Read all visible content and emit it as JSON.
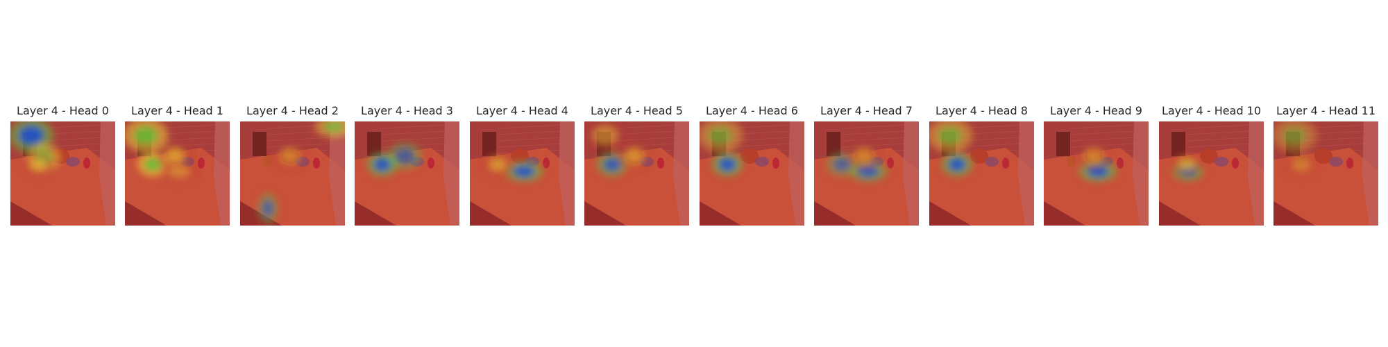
{
  "figure": {
    "panels": [
      {
        "title": "Layer 4 - Head 0",
        "hotspots": [
          {
            "spot": "left-top",
            "tone": "blue",
            "weight": 1.0
          },
          {
            "spot": "pot-left",
            "tone": "green",
            "weight": 0.8
          },
          {
            "spot": "mug",
            "tone": "yellow",
            "weight": 0.6
          }
        ]
      },
      {
        "title": "Layer 4 - Head 1",
        "hotspots": [
          {
            "spot": "left-top",
            "tone": "green",
            "weight": 0.9
          },
          {
            "spot": "mug",
            "tone": "green",
            "weight": 1.0
          },
          {
            "spot": "pot",
            "tone": "yellow",
            "weight": 0.7
          },
          {
            "spot": "counter-mid",
            "tone": "yellow",
            "weight": 0.5
          }
        ]
      },
      {
        "title": "Layer 4 - Head 2",
        "hotspots": [
          {
            "spot": "top-right",
            "tone": "green",
            "weight": 0.8
          },
          {
            "spot": "cabinet-low",
            "tone": "blue",
            "weight": 0.7
          },
          {
            "spot": "pot",
            "tone": "yellow",
            "weight": 0.5
          }
        ]
      },
      {
        "title": "Layer 4 - Head 3",
        "hotspots": [
          {
            "spot": "mug",
            "tone": "blue",
            "weight": 1.0
          },
          {
            "spot": "pot",
            "tone": "blue",
            "weight": 0.7
          }
        ]
      },
      {
        "title": "Layer 4 - Head 4",
        "hotspots": [
          {
            "spot": "counter-mid",
            "tone": "blue",
            "weight": 1.0
          },
          {
            "spot": "mug",
            "tone": "yellow",
            "weight": 0.6
          }
        ]
      },
      {
        "title": "Layer 4 - Head 5",
        "hotspots": [
          {
            "spot": "mug",
            "tone": "blue",
            "weight": 0.9
          },
          {
            "spot": "left-top",
            "tone": "yellow",
            "weight": 0.5
          },
          {
            "spot": "pot",
            "tone": "yellow",
            "weight": 0.6
          }
        ]
      },
      {
        "title": "Layer 4 - Head 6",
        "hotspots": [
          {
            "spot": "mug",
            "tone": "blue",
            "weight": 1.0
          },
          {
            "spot": "left-top",
            "tone": "green",
            "weight": 0.6
          }
        ]
      },
      {
        "title": "Layer 4 - Head 7",
        "hotspots": [
          {
            "spot": "counter-mid",
            "tone": "blue",
            "weight": 0.9
          },
          {
            "spot": "mug",
            "tone": "blue",
            "weight": 0.7
          },
          {
            "spot": "pot",
            "tone": "yellow",
            "weight": 0.5
          }
        ]
      },
      {
        "title": "Layer 4 - Head 8",
        "hotspots": [
          {
            "spot": "mug",
            "tone": "blue",
            "weight": 1.0
          },
          {
            "spot": "left-top",
            "tone": "green",
            "weight": 0.7
          }
        ]
      },
      {
        "title": "Layer 4 - Head 9",
        "hotspots": [
          {
            "spot": "counter-mid",
            "tone": "blue",
            "weight": 1.0
          },
          {
            "spot": "pot",
            "tone": "yellow",
            "weight": 0.5
          }
        ]
      },
      {
        "title": "Layer 4 - Head 10",
        "hotspots": [
          {
            "spot": "mug-low",
            "tone": "blue",
            "weight": 1.0
          },
          {
            "spot": "mug",
            "tone": "yellow",
            "weight": 0.6
          }
        ]
      },
      {
        "title": "Layer 4 - Head 11",
        "hotspots": [
          {
            "spot": "left-top",
            "tone": "green",
            "weight": 0.5
          },
          {
            "spot": "mug",
            "tone": "yellow",
            "weight": 0.4
          }
        ]
      }
    ]
  },
  "colors": {
    "background": "#ffffff",
    "title_text": "#262626",
    "heat_red": "#b8302a",
    "heat_yellow": "#f2d43a",
    "heat_green": "#5fbf3a",
    "heat_blue": "#1f4fd6",
    "wall": "#9b4a4a",
    "counter": "#d86a45",
    "cabinet": "#7a2a2a"
  }
}
